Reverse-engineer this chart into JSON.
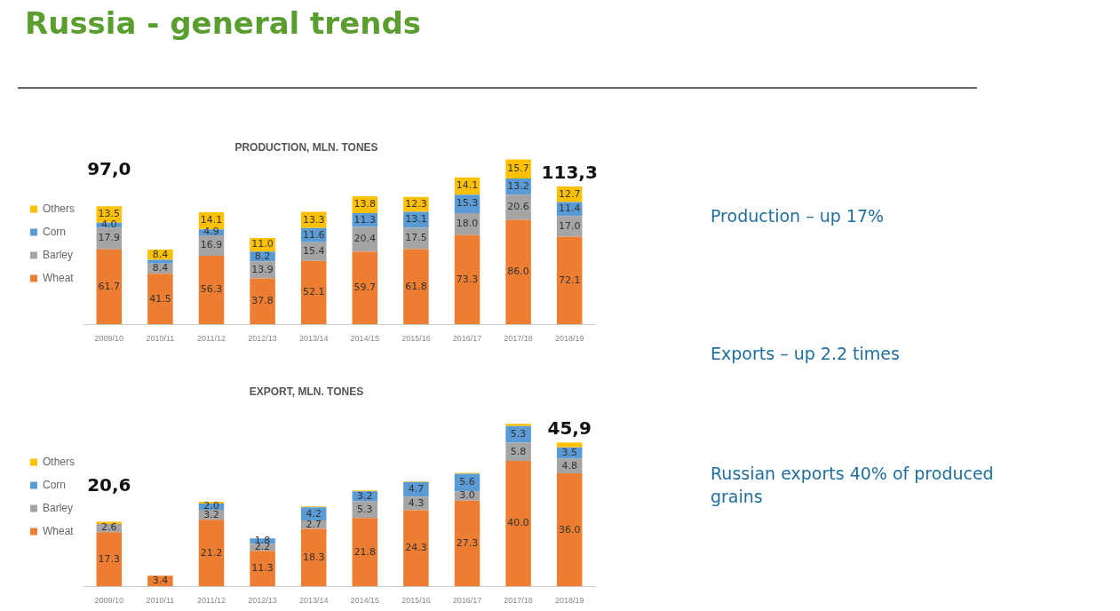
{
  "chart_data": [
    {
      "type": "other",
      "title": "Russia - general trends",
      "annotations": [
        "Production – up 17%",
        "Exports – up 2.2 times",
        "Russian exports 40% of produced grains"
      ]
    },
    {
      "type": "bar",
      "title": "PRODUCTION, MLN. TONES",
      "stacked": true,
      "legend": "left",
      "tick_labels": "x",
      "grid": false,
      "categories": [
        "2009/10",
        "2010/11",
        "2011/12",
        "2012/13",
        "2013/14",
        "2014/15",
        "2015/16",
        "2016/17",
        "2017/18",
        "2018/19"
      ],
      "series": [
        {
          "name": "Wheat",
          "color": "#ed7d31",
          "values": [
            61.7,
            41.5,
            56.3,
            37.8,
            52.1,
            59.7,
            61.8,
            73.3,
            86.0,
            72.1
          ],
          "value_labels": [
            "61.7",
            "41.5",
            "56.3",
            "37.8",
            "52.1",
            "59.7",
            "61.8",
            "73.3",
            "86.0",
            "72.1"
          ]
        },
        {
          "name": "Barley",
          "color": "#a5a5a5",
          "values": [
            17.9,
            8.4,
            16.9,
            13.9,
            15.4,
            20.4,
            17.5,
            18.0,
            20.6,
            17.0
          ],
          "value_labels": [
            "17.9",
            "8.4",
            "16.9",
            "13.9",
            "15.4",
            "20.4",
            "17.5",
            "18.0",
            "20.6",
            "17.0"
          ]
        },
        {
          "name": "Corn",
          "color": "#5b9bd5",
          "values": [
            4.0,
            3.1,
            4.9,
            8.2,
            11.6,
            11.3,
            13.1,
            15.3,
            13.2,
            11.4
          ],
          "value_labels": [
            "4.0",
            null,
            "4.9",
            "8.2",
            "11.6",
            "11.3",
            "13.1",
            "15.3",
            "13.2",
            "11.4"
          ]
        },
        {
          "name": "Others",
          "color": "#ffc000",
          "values": [
            13.5,
            8.4,
            14.1,
            11.0,
            13.3,
            13.8,
            12.3,
            14.1,
            15.7,
            12.7
          ],
          "value_labels": [
            "13.5",
            "8.4",
            "14.1",
            "11.0",
            "13.3",
            "13.8",
            "12.3",
            "14.1",
            "15.7",
            "12.7"
          ]
        }
      ],
      "totals": [
        "97,0",
        null,
        null,
        null,
        null,
        null,
        null,
        null,
        null,
        "113,3"
      ]
    },
    {
      "type": "bar",
      "title": "EXPORT, MLN. TONES",
      "stacked": true,
      "legend": "left",
      "tick_labels": "x",
      "grid": false,
      "categories": [
        "2009/10",
        "2010/11",
        "2011/12",
        "2012/13",
        "2013/14",
        "2014/15",
        "2015/16",
        "2016/17",
        "2017/18",
        "2018/19"
      ],
      "series": [
        {
          "name": "Wheat",
          "color": "#ed7d31",
          "values": [
            17.3,
            3.4,
            21.2,
            11.3,
            18.3,
            21.8,
            24.3,
            27.3,
            40.0,
            36.0
          ],
          "value_labels": [
            "17.3",
            "3.4",
            "21.2",
            "11.3",
            "18.3",
            "21.8",
            "24.3",
            "27.3",
            "40.0",
            "36.0"
          ]
        },
        {
          "name": "Barley",
          "color": "#a5a5a5",
          "values": [
            2.6,
            null,
            3.2,
            2.2,
            2.7,
            5.3,
            4.3,
            3.0,
            5.8,
            4.8
          ],
          "value_labels": [
            "2.6",
            null,
            "3.2",
            "2.2",
            "2.7",
            "5.3",
            "4.3",
            "3.0",
            "5.8",
            "4.8"
          ]
        },
        {
          "name": "Corn",
          "color": "#5b9bd5",
          "values": [
            null,
            null,
            2.0,
            1.8,
            4.2,
            3.2,
            4.7,
            5.6,
            5.3,
            3.5
          ],
          "value_labels": [
            null,
            null,
            "2.0",
            "1.8",
            "4.2",
            "3.2",
            "4.7",
            "5.6",
            "5.3",
            "3.5"
          ]
        },
        {
          "name": "Others",
          "color": "#ffc000",
          "values": [
            0.7,
            null,
            0.6,
            null,
            0.3,
            0.3,
            0.2,
            0.3,
            0.7,
            1.6
          ]
        }
      ],
      "totals": [
        "20,6",
        null,
        null,
        null,
        null,
        null,
        null,
        null,
        null,
        "45,9"
      ]
    }
  ]
}
